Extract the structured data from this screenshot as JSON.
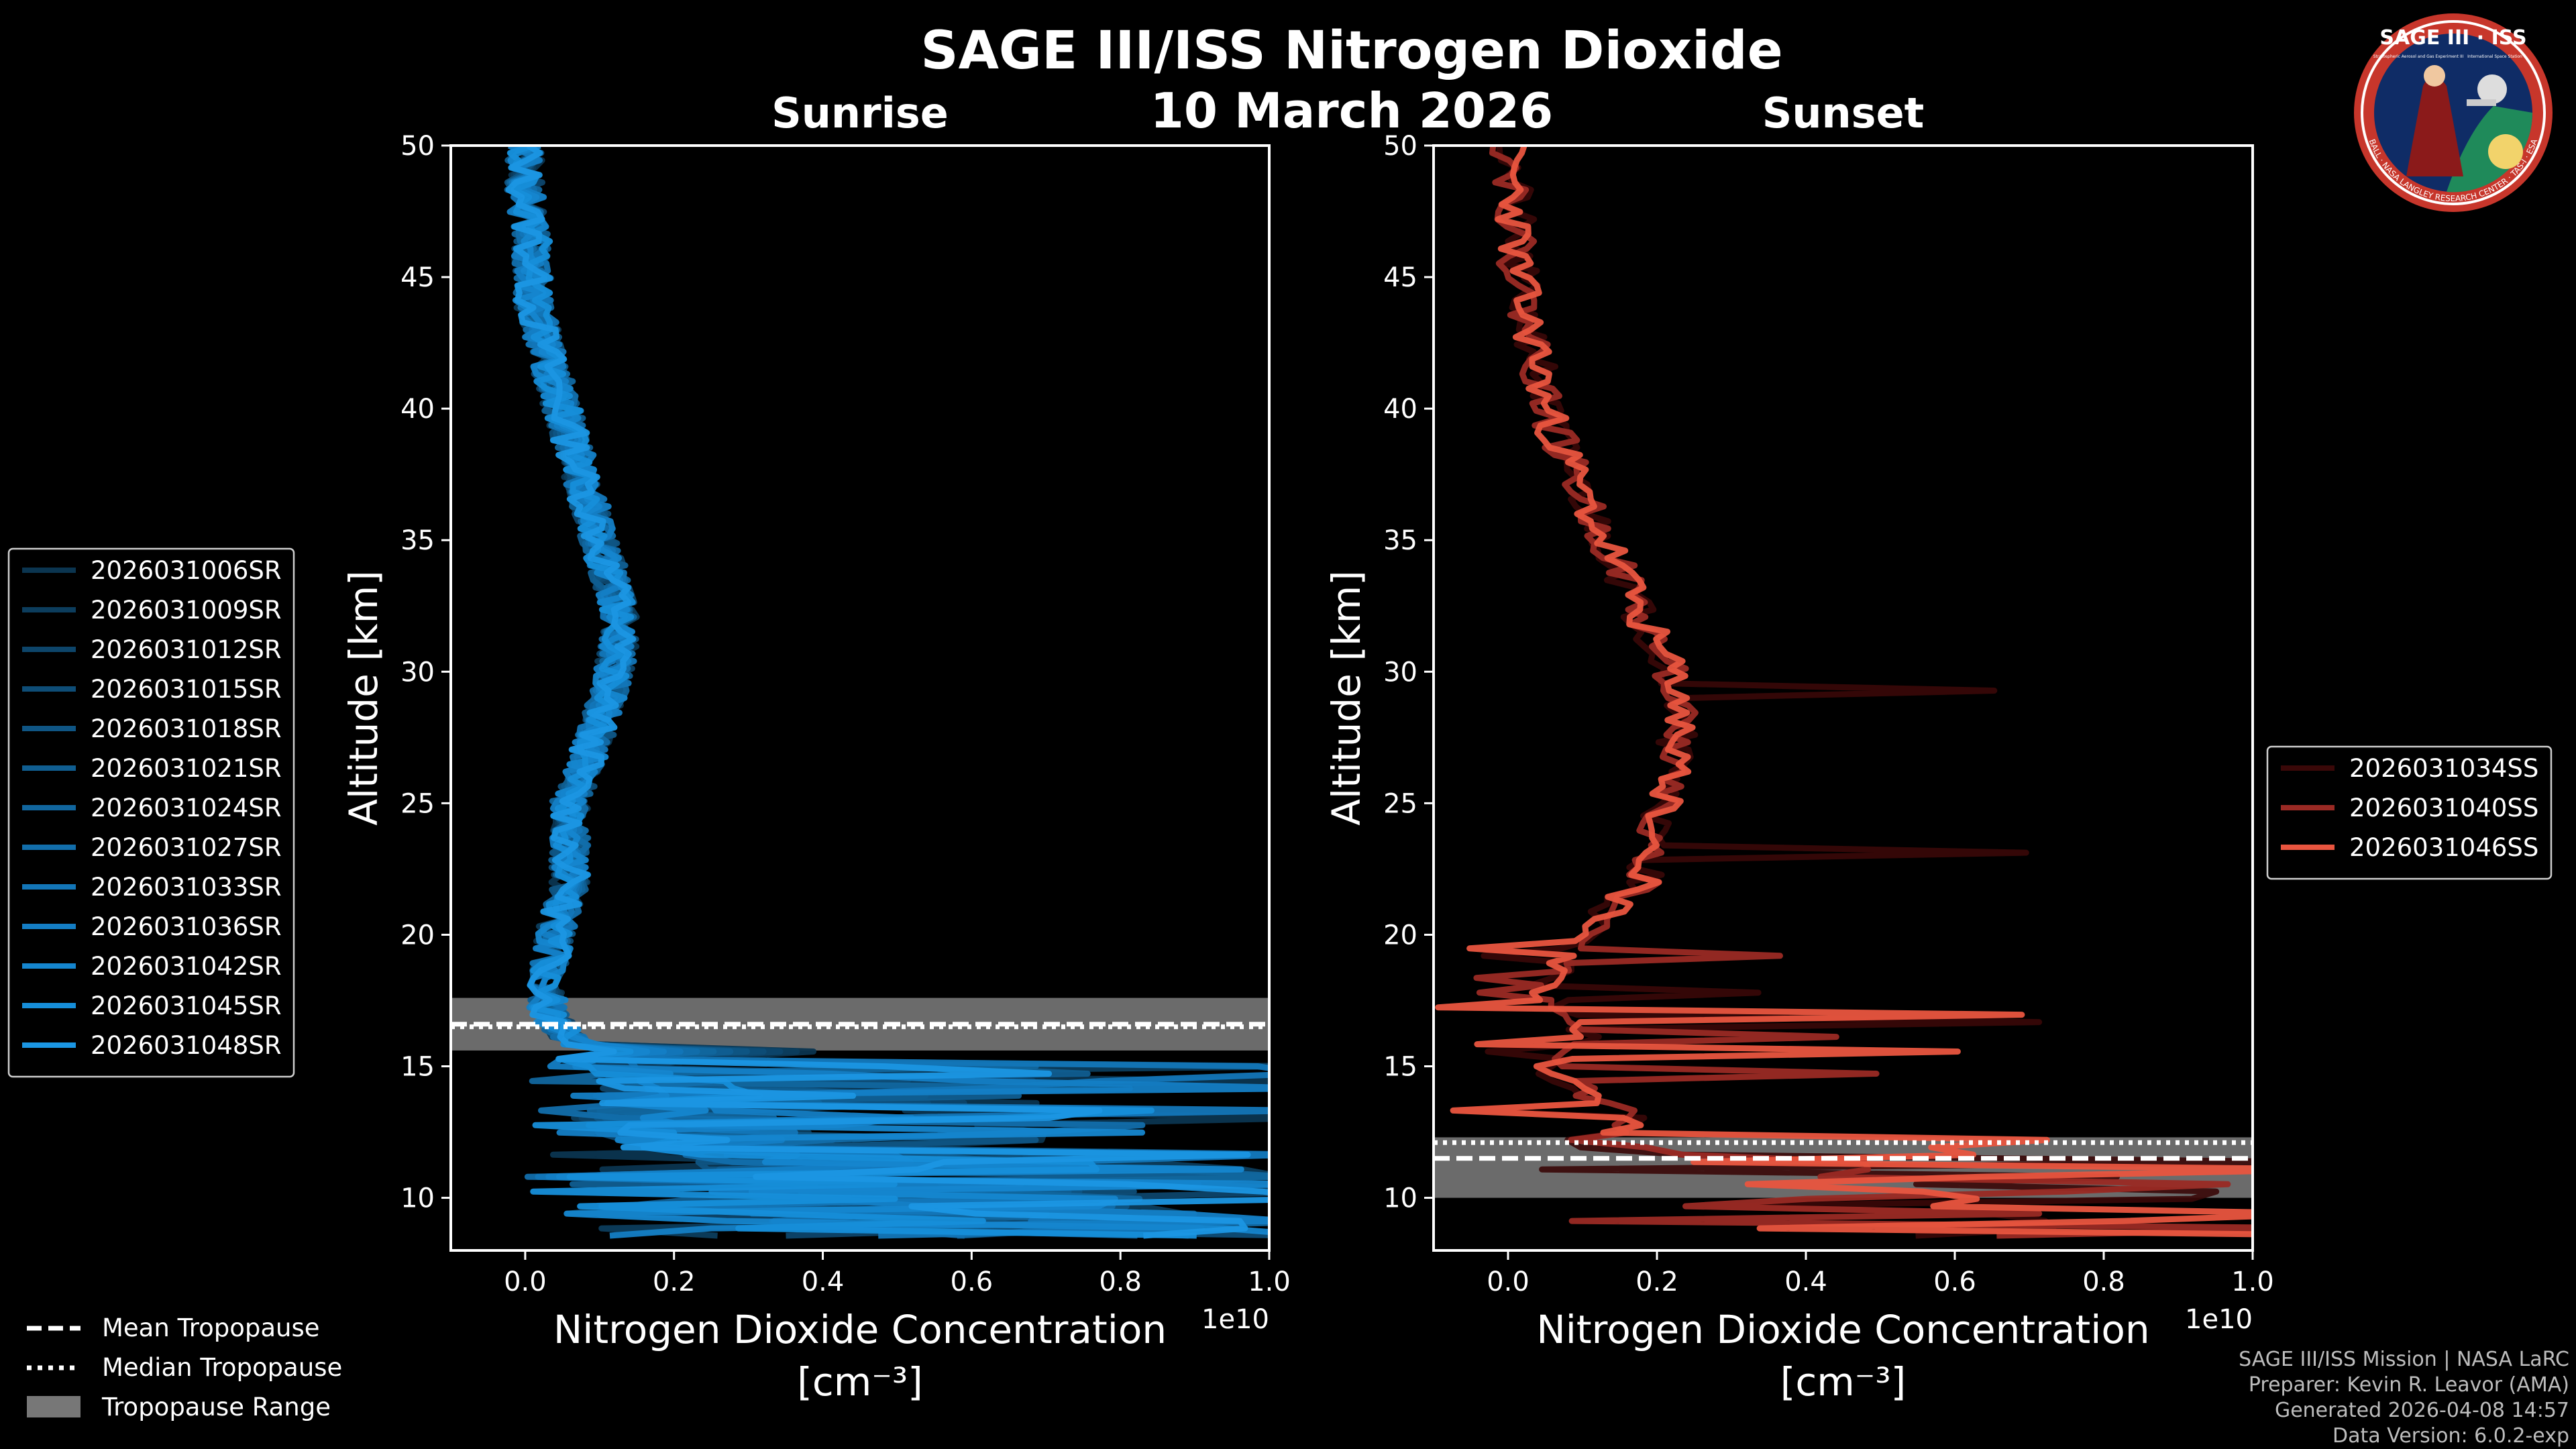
{
  "title": "SAGE III/ISS Nitrogen Dioxide",
  "date": "10 March 2026",
  "logo": {
    "top_text": "SAGE III · ISS",
    "left_small": "Stratospheric Aerosol and Gas Experiment III",
    "right_small": "International Space Station",
    "ring_text": "BALL · NASA LANGLEY RESEARCH CENTER · TAS-I · ESA"
  },
  "credits": [
    "SAGE III/ISS Mission | NASA LaRC",
    "Preparer: Kevin R. Leavor (AMA)",
    "Generated 2026-04-08 14:57",
    "Data Version: 6.0.2-exp"
  ],
  "tropopause_legend": [
    {
      "label": "Mean Tropopause",
      "style": "dashed"
    },
    {
      "label": "Median Tropopause",
      "style": "dotted"
    },
    {
      "label": "Tropopause Range",
      "style": "patch"
    }
  ],
  "chart_data": [
    {
      "type": "line",
      "title": "Sunrise",
      "xlabel": "Nitrogen Dioxide Concentration",
      "xlabel_unit": "[cm⁻³]",
      "ylabel": "Altitude [km]",
      "x_multiplier": "1e10",
      "xlim": [
        -0.1,
        1.0
      ],
      "ylim": [
        8,
        50
      ],
      "xticks": [
        0.0,
        0.2,
        0.4,
        0.6,
        0.8,
        1.0
      ],
      "yticks": [
        10,
        15,
        20,
        25,
        30,
        35,
        40,
        45,
        50
      ],
      "xtick_labels": [
        "0.0",
        "0.2",
        "0.4",
        "0.6",
        "0.8",
        "1.0"
      ],
      "ytick_labels": [
        "10",
        "15",
        "20",
        "25",
        "30",
        "35",
        "40",
        "45",
        "50"
      ],
      "tropopause": {
        "mean": 16.6,
        "median": 16.5,
        "range": [
          15.6,
          17.6
        ]
      },
      "series": [
        {
          "name": "2026031006SR",
          "color": "#0b3550",
          "seed": 1
        },
        {
          "name": "2026031009SR",
          "color": "#0c3d5d",
          "seed": 2
        },
        {
          "name": "2026031012SR",
          "color": "#0d456a",
          "seed": 3
        },
        {
          "name": "2026031015SR",
          "color": "#0e4d77",
          "seed": 4
        },
        {
          "name": "2026031018SR",
          "color": "#0f5584",
          "seed": 5
        },
        {
          "name": "2026031021SR",
          "color": "#105e91",
          "seed": 6
        },
        {
          "name": "2026031024SR",
          "color": "#11669e",
          "seed": 7
        },
        {
          "name": "2026031027SR",
          "color": "#126eab",
          "seed": 8
        },
        {
          "name": "2026031033SR",
          "color": "#1376b8",
          "seed": 9
        },
        {
          "name": "2026031036SR",
          "color": "#147ec5",
          "seed": 10
        },
        {
          "name": "2026031042SR",
          "color": "#1586cf",
          "seed": 11
        },
        {
          "name": "2026031045SR",
          "color": "#168ed9",
          "seed": 12
        },
        {
          "name": "2026031048SR",
          "color": "#1b96e3",
          "seed": 13
        }
      ],
      "profile": [
        [
          8.5,
          0.9
        ],
        [
          9,
          1.0
        ],
        [
          10,
          0.7
        ],
        [
          11,
          0.9
        ],
        [
          12,
          0.35
        ],
        [
          13,
          0.2
        ],
        [
          14,
          0.3
        ],
        [
          15,
          0.15
        ],
        [
          16,
          0.06
        ],
        [
          17,
          0.03
        ],
        [
          18,
          0.03
        ],
        [
          20,
          0.04
        ],
        [
          22,
          0.06
        ],
        [
          25,
          0.06
        ],
        [
          28,
          0.1
        ],
        [
          30,
          0.12
        ],
        [
          32,
          0.13
        ],
        [
          34,
          0.11
        ],
        [
          36,
          0.09
        ],
        [
          38,
          0.07
        ],
        [
          40,
          0.05
        ],
        [
          42,
          0.03
        ],
        [
          44,
          0.01
        ],
        [
          46,
          0.01
        ],
        [
          48,
          0.0
        ],
        [
          50,
          0.0
        ]
      ]
    },
    {
      "type": "line",
      "title": "Sunset",
      "xlabel": "Nitrogen Dioxide Concentration",
      "xlabel_unit": "[cm⁻³]",
      "ylabel": "Altitude [km]",
      "x_multiplier": "1e10",
      "xlim": [
        -0.1,
        1.0
      ],
      "ylim": [
        8,
        50
      ],
      "xticks": [
        0.0,
        0.2,
        0.4,
        0.6,
        0.8,
        1.0
      ],
      "yticks": [
        10,
        15,
        20,
        25,
        30,
        35,
        40,
        45,
        50
      ],
      "xtick_labels": [
        "0.0",
        "0.2",
        "0.4",
        "0.6",
        "0.8",
        "1.0"
      ],
      "ytick_labels": [
        "10",
        "15",
        "20",
        "25",
        "30",
        "35",
        "40",
        "45",
        "50"
      ],
      "tropopause": {
        "mean": 11.5,
        "median": 12.1,
        "range": [
          10.0,
          12.3
        ]
      },
      "series": [
        {
          "name": "2026031034SS",
          "color": "#3a0808",
          "seed": 21
        },
        {
          "name": "2026031040SS",
          "color": "#9a2a24",
          "seed": 22
        },
        {
          "name": "2026031046SS",
          "color": "#e9553f",
          "seed": 23
        }
      ],
      "profile": [
        [
          11.3,
          1.0
        ],
        [
          12,
          0.1
        ],
        [
          13,
          0.18
        ],
        [
          14,
          0.1
        ],
        [
          15,
          0.05
        ],
        [
          16,
          0.1
        ],
        [
          17,
          0.08
        ],
        [
          18,
          0.05
        ],
        [
          20,
          0.1
        ],
        [
          22,
          0.18
        ],
        [
          24,
          0.2
        ],
        [
          26,
          0.22
        ],
        [
          28,
          0.23
        ],
        [
          30,
          0.22
        ],
        [
          32,
          0.18
        ],
        [
          34,
          0.15
        ],
        [
          36,
          0.11
        ],
        [
          38,
          0.08
        ],
        [
          40,
          0.05
        ],
        [
          42,
          0.04
        ],
        [
          44,
          0.02
        ],
        [
          46,
          0.01
        ],
        [
          48,
          0.01
        ],
        [
          50,
          0.0
        ]
      ]
    }
  ]
}
